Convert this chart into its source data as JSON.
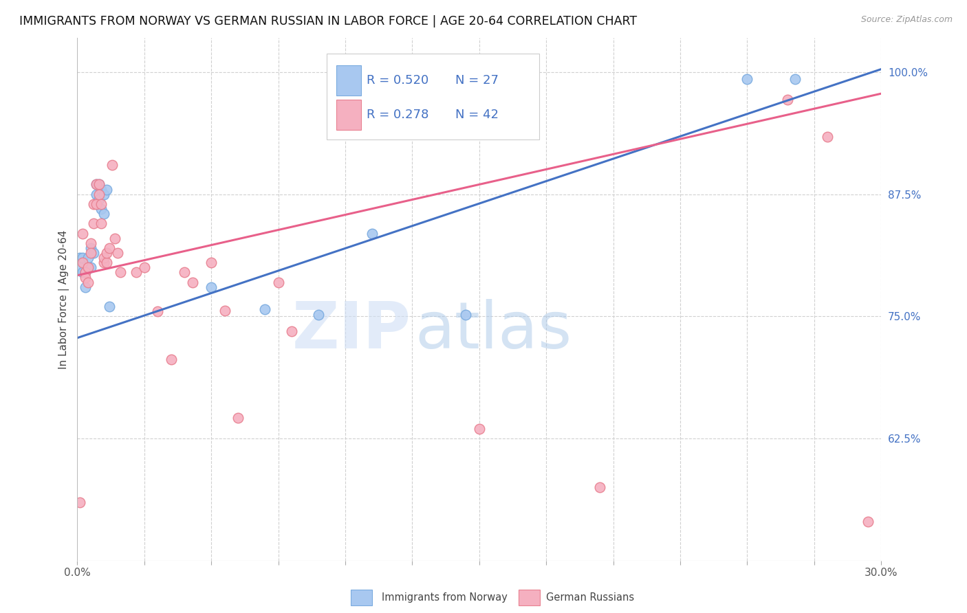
{
  "title": "IMMIGRANTS FROM NORWAY VS GERMAN RUSSIAN IN LABOR FORCE | AGE 20-64 CORRELATION CHART",
  "source": "Source: ZipAtlas.com",
  "ylabel": "In Labor Force | Age 20-64",
  "xlim": [
    0.0,
    0.3
  ],
  "ylim": [
    0.5,
    1.035
  ],
  "xticks": [
    0.0,
    0.025,
    0.05,
    0.075,
    0.1,
    0.125,
    0.15,
    0.175,
    0.2,
    0.225,
    0.25,
    0.275,
    0.3
  ],
  "yticks_right": [
    0.625,
    0.75,
    0.875,
    1.0
  ],
  "yticklabels_right": [
    "62.5%",
    "75.0%",
    "87.5%",
    "100.0%"
  ],
  "norway_color": "#a8c8f0",
  "norway_edge": "#7aabdf",
  "german_color": "#f5b0c0",
  "german_edge": "#e88090",
  "norway_line_color": "#4472c4",
  "german_line_color": "#e8608a",
  "norway_R": 0.52,
  "norway_N": 27,
  "german_R": 0.278,
  "german_N": 42,
  "legend_label1": "Immigrants from Norway",
  "legend_label2": "German Russians",
  "norway_line_y0": 0.728,
  "norway_line_y1": 1.003,
  "german_line_y0": 0.792,
  "german_line_y1": 0.978,
  "norway_x": [
    0.001,
    0.001,
    0.002,
    0.002,
    0.003,
    0.003,
    0.004,
    0.005,
    0.005,
    0.006,
    0.007,
    0.007,
    0.008,
    0.008,
    0.009,
    0.009,
    0.01,
    0.01,
    0.011,
    0.012,
    0.05,
    0.07,
    0.09,
    0.11,
    0.145,
    0.25,
    0.268
  ],
  "norway_y": [
    0.8,
    0.81,
    0.795,
    0.81,
    0.795,
    0.78,
    0.81,
    0.82,
    0.8,
    0.815,
    0.885,
    0.875,
    0.885,
    0.87,
    0.88,
    0.86,
    0.875,
    0.855,
    0.88,
    0.76,
    0.78,
    0.757,
    0.752,
    0.835,
    0.752,
    0.993,
    0.993
  ],
  "german_x": [
    0.001,
    0.002,
    0.002,
    0.003,
    0.003,
    0.004,
    0.004,
    0.005,
    0.005,
    0.006,
    0.006,
    0.007,
    0.007,
    0.008,
    0.008,
    0.009,
    0.009,
    0.01,
    0.01,
    0.011,
    0.011,
    0.012,
    0.013,
    0.014,
    0.015,
    0.016,
    0.022,
    0.025,
    0.03,
    0.035,
    0.04,
    0.043,
    0.05,
    0.055,
    0.06,
    0.075,
    0.08,
    0.15,
    0.195,
    0.265,
    0.28,
    0.295
  ],
  "german_y": [
    0.56,
    0.805,
    0.835,
    0.795,
    0.79,
    0.785,
    0.8,
    0.825,
    0.815,
    0.845,
    0.865,
    0.865,
    0.885,
    0.885,
    0.875,
    0.865,
    0.845,
    0.805,
    0.81,
    0.805,
    0.815,
    0.82,
    0.905,
    0.83,
    0.815,
    0.795,
    0.795,
    0.8,
    0.755,
    0.706,
    0.795,
    0.785,
    0.805,
    0.756,
    0.646,
    0.785,
    0.735,
    0.635,
    0.575,
    0.972,
    0.934,
    0.54
  ],
  "grid_color": "#d0d0d0",
  "background_color": "#ffffff",
  "title_color": "#111111",
  "title_fontsize": 12.5,
  "right_tick_color": "#4472c4",
  "legend_r_color": "#4472c4",
  "source_color": "#999999",
  "watermark_zip_color": "#d0dff0",
  "watermark_atlas_color": "#c0d8f0"
}
